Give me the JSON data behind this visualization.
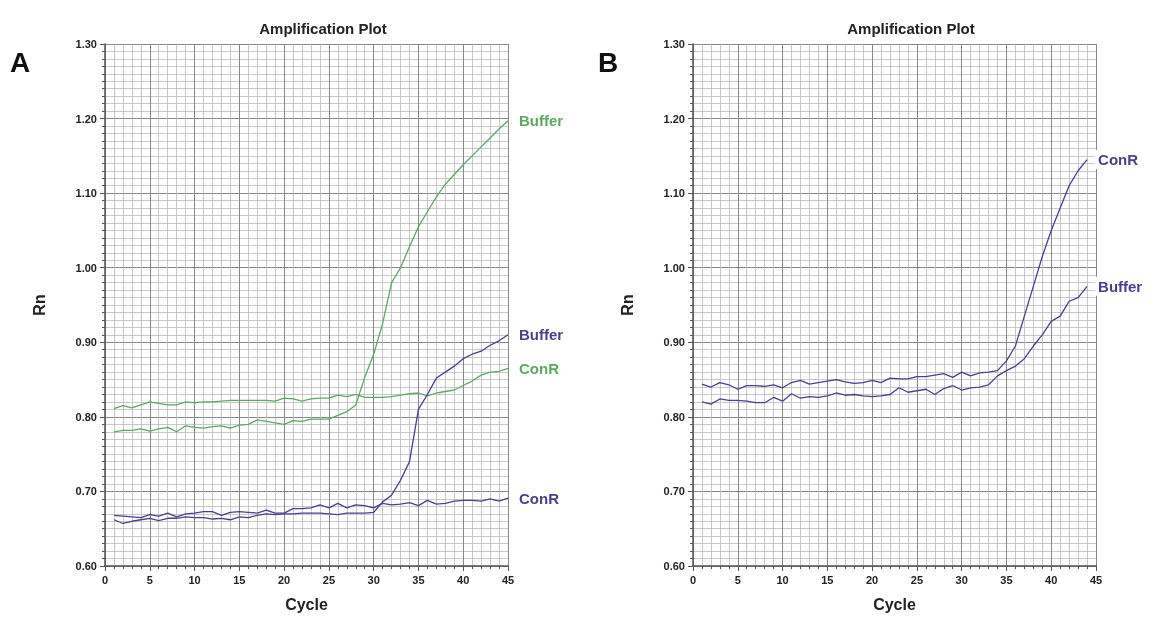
{
  "chart_data": [
    {
      "type": "line",
      "title": "Amplification Plot",
      "xlabel": "Cycle",
      "ylabel": "Rn",
      "annotations": [
        "A"
      ],
      "grid": true,
      "x": [
        1,
        2,
        3,
        4,
        5,
        6,
        7,
        8,
        9,
        10,
        11,
        12,
        13,
        14,
        15,
        16,
        17,
        18,
        19,
        20,
        21,
        22,
        23,
        24,
        25,
        26,
        27,
        28,
        29,
        30,
        31,
        32,
        33,
        34,
        35,
        36,
        37,
        38,
        39,
        40,
        41,
        42,
        43,
        44,
        45
      ],
      "xlim": [
        0,
        45
      ],
      "xticks": [
        0,
        5,
        10,
        15,
        20,
        25,
        30,
        35,
        40,
        45
      ],
      "ylim": [
        0.6,
        1.3
      ],
      "yticks": [
        {
          "value": 0.6,
          "label": "0.60"
        },
        {
          "value": 0.7,
          "label": "0.70"
        },
        {
          "value": 0.8,
          "label": "0.80"
        },
        {
          "value": 0.9,
          "label": "0.90"
        },
        {
          "value": 1.0,
          "label": "1.00"
        },
        {
          "value": 1.1,
          "label": "1.10"
        },
        {
          "value": 1.2,
          "label": "1.20"
        },
        {
          "value": 1.3,
          "label": "1.30"
        }
      ],
      "series": [
        {
          "name": "Buffer",
          "color": "#5fa862",
          "values": [
            0.78,
            0.782,
            0.782,
            0.784,
            0.781,
            0.784,
            0.786,
            0.78,
            0.788,
            0.786,
            0.785,
            0.787,
            0.788,
            0.785,
            0.789,
            0.79,
            0.796,
            0.794,
            0.792,
            0.79,
            0.795,
            0.794,
            0.797,
            0.797,
            0.797,
            0.802,
            0.807,
            0.816,
            0.853,
            0.884,
            0.925,
            0.98,
            1.0,
            1.028,
            1.055,
            1.075,
            1.095,
            1.112,
            1.125,
            1.138,
            1.15,
            1.162,
            1.174,
            1.186,
            1.197
          ]
        },
        {
          "name": "ConR",
          "color": "#5fa862",
          "values": [
            0.811,
            0.815,
            0.812,
            0.816,
            0.82,
            0.818,
            0.816,
            0.816,
            0.82,
            0.819,
            0.82,
            0.82,
            0.821,
            0.822,
            0.822,
            0.822,
            0.822,
            0.822,
            0.821,
            0.825,
            0.824,
            0.821,
            0.824,
            0.825,
            0.825,
            0.829,
            0.827,
            0.83,
            0.826,
            0.826,
            0.826,
            0.827,
            0.829,
            0.831,
            0.832,
            0.828,
            0.832,
            0.834,
            0.836,
            0.842,
            0.848,
            0.856,
            0.86,
            0.861,
            0.865
          ]
        },
        {
          "name": "Buffer",
          "color": "#4a3f8e",
          "values": [
            0.662,
            0.657,
            0.66,
            0.662,
            0.664,
            0.661,
            0.664,
            0.664,
            0.666,
            0.665,
            0.665,
            0.663,
            0.664,
            0.662,
            0.666,
            0.665,
            0.668,
            0.67,
            0.669,
            0.67,
            0.67,
            0.671,
            0.671,
            0.671,
            0.67,
            0.669,
            0.671,
            0.671,
            0.671,
            0.672,
            0.686,
            0.695,
            0.715,
            0.74,
            0.81,
            0.83,
            0.852,
            0.86,
            0.868,
            0.878,
            0.884,
            0.888,
            0.896,
            0.902,
            0.91
          ]
        },
        {
          "name": "ConR",
          "color": "#4a3f8e",
          "values": [
            0.668,
            0.667,
            0.666,
            0.665,
            0.669,
            0.667,
            0.671,
            0.666,
            0.67,
            0.671,
            0.673,
            0.673,
            0.668,
            0.672,
            0.673,
            0.672,
            0.671,
            0.675,
            0.671,
            0.671,
            0.677,
            0.677,
            0.678,
            0.682,
            0.678,
            0.684,
            0.678,
            0.682,
            0.681,
            0.678,
            0.684,
            0.682,
            0.683,
            0.685,
            0.681,
            0.688,
            0.683,
            0.684,
            0.687,
            0.688,
            0.688,
            0.687,
            0.69,
            0.687,
            0.691
          ]
        }
      ]
    },
    {
      "type": "line",
      "title": "Amplification Plot",
      "xlabel": "Cycle",
      "ylabel": "Rn",
      "annotations": [
        "B"
      ],
      "grid": true,
      "x": [
        1,
        2,
        3,
        4,
        5,
        6,
        7,
        8,
        9,
        10,
        11,
        12,
        13,
        14,
        15,
        16,
        17,
        18,
        19,
        20,
        21,
        22,
        23,
        24,
        25,
        26,
        27,
        28,
        29,
        30,
        31,
        32,
        33,
        34,
        35,
        36,
        37,
        38,
        39,
        40,
        41,
        42,
        43,
        44
      ],
      "xlim": [
        0,
        45
      ],
      "xticks": [
        0,
        5,
        10,
        15,
        20,
        25,
        30,
        35,
        40,
        45
      ],
      "ylim": [
        0.6,
        1.3
      ],
      "yticks": [
        {
          "value": 0.6,
          "label": "0.60"
        },
        {
          "value": 0.7,
          "label": "0.70"
        },
        {
          "value": 0.8,
          "label": "0.80"
        },
        {
          "value": 0.9,
          "label": "0.90"
        },
        {
          "value": 1.0,
          "label": "1.00"
        },
        {
          "value": 1.1,
          "label": "1.10"
        },
        {
          "value": 1.2,
          "label": "1.20"
        },
        {
          "value": 1.3,
          "label": "1.30"
        }
      ],
      "series": [
        {
          "name": "ConR",
          "color": "#4a3f8e",
          "values": [
            0.844,
            0.84,
            0.846,
            0.843,
            0.837,
            0.842,
            0.842,
            0.841,
            0.843,
            0.839,
            0.846,
            0.849,
            0.844,
            0.846,
            0.848,
            0.85,
            0.847,
            0.845,
            0.846,
            0.849,
            0.846,
            0.852,
            0.851,
            0.851,
            0.854,
            0.854,
            0.856,
            0.858,
            0.853,
            0.86,
            0.855,
            0.859,
            0.86,
            0.862,
            0.875,
            0.895,
            0.935,
            0.975,
            1.015,
            1.05,
            1.08,
            1.11,
            1.13,
            1.145
          ]
        },
        {
          "name": "Buffer",
          "color": "#4a3f8e",
          "values": [
            0.82,
            0.817,
            0.824,
            0.822,
            0.822,
            0.821,
            0.819,
            0.819,
            0.826,
            0.821,
            0.831,
            0.825,
            0.827,
            0.826,
            0.828,
            0.832,
            0.829,
            0.83,
            0.828,
            0.827,
            0.828,
            0.83,
            0.839,
            0.833,
            0.835,
            0.837,
            0.83,
            0.838,
            0.842,
            0.836,
            0.839,
            0.84,
            0.843,
            0.855,
            0.862,
            0.868,
            0.878,
            0.895,
            0.91,
            0.928,
            0.935,
            0.955,
            0.96,
            0.975
          ]
        }
      ]
    }
  ]
}
